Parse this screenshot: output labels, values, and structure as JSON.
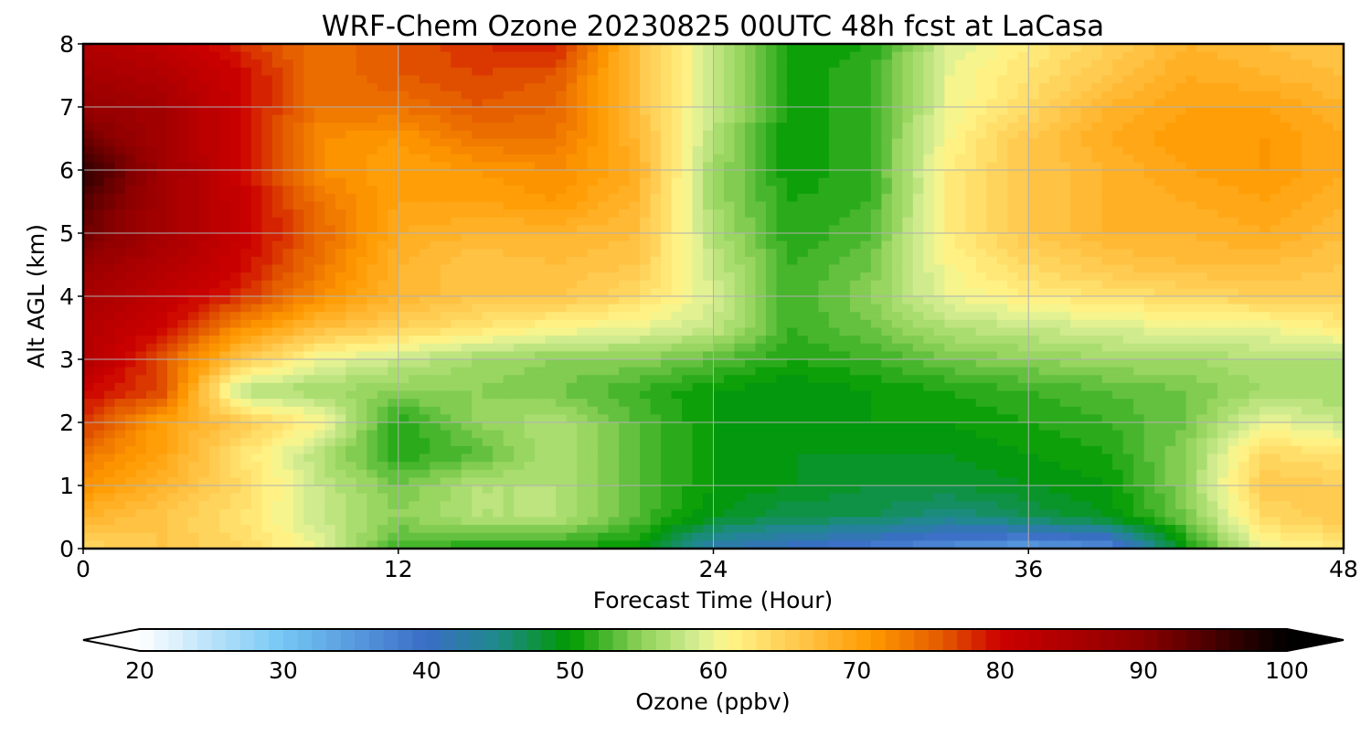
{
  "chart_data": {
    "type": "heatmap",
    "title": "WRF-Chem Ozone  20230825 00UTC 48h fcst at LaCasa",
    "xlabel": "Forecast Time (Hour)",
    "ylabel": "Alt AGL (km)",
    "xlim": [
      0,
      48
    ],
    "ylim": [
      0,
      8
    ],
    "x_ticks": [
      "0",
      "12",
      "24",
      "36",
      "48"
    ],
    "y_ticks": [
      "0",
      "1",
      "2",
      "3",
      "4",
      "5",
      "6",
      "7",
      "8"
    ],
    "grid": true,
    "colorbar": {
      "label": "Ozone  (ppbv)",
      "range": [
        20,
        100
      ],
      "ticks": [
        "20",
        "30",
        "40",
        "50",
        "60",
        "70",
        "80",
        "90",
        "100"
      ],
      "extend": "both",
      "placement": "bottom",
      "stops": [
        {
          "v": 20,
          "c": "#ffffff"
        },
        {
          "v": 30,
          "c": "#74c6f4"
        },
        {
          "v": 40,
          "c": "#3a6dc6"
        },
        {
          "v": 45,
          "c": "#1e8a8a"
        },
        {
          "v": 50,
          "c": "#009a00"
        },
        {
          "v": 55,
          "c": "#8fd25a"
        },
        {
          "v": 59,
          "c": "#d8ef95"
        },
        {
          "v": 61,
          "c": "#fff68a"
        },
        {
          "v": 66,
          "c": "#ffc64a"
        },
        {
          "v": 71,
          "c": "#ff9a00"
        },
        {
          "v": 76,
          "c": "#e35a00"
        },
        {
          "v": 80,
          "c": "#cc0000"
        },
        {
          "v": 90,
          "c": "#8a0000"
        },
        {
          "v": 100,
          "c": "#000000"
        }
      ]
    },
    "x": [
      0,
      3,
      6,
      9,
      12,
      15,
      18,
      21,
      24,
      27,
      30,
      33,
      36,
      39,
      42,
      45,
      48
    ],
    "y": [
      0,
      0.5,
      1,
      1.5,
      2,
      2.5,
      3,
      3.5,
      4,
      4.5,
      5,
      5.5,
      6,
      6.5,
      7,
      7.5,
      8
    ],
    "z": [
      [
        64,
        66,
        64,
        60,
        52,
        51,
        51,
        50,
        42,
        40,
        38,
        36,
        34,
        36,
        50,
        60,
        62
      ],
      [
        68,
        66,
        63,
        58,
        55,
        57,
        57,
        53,
        49,
        47,
        47,
        45,
        47,
        49,
        54,
        64,
        66
      ],
      [
        72,
        68,
        64,
        58,
        54,
        57,
        57,
        53,
        50,
        49,
        48,
        48,
        49,
        50,
        55,
        66,
        65
      ],
      [
        74,
        70,
        63,
        57,
        51,
        53,
        57,
        53,
        50,
        49,
        49,
        49,
        50,
        51,
        55,
        64,
        63
      ],
      [
        78,
        70,
        66,
        61,
        51,
        55,
        57,
        53,
        50,
        50,
        50,
        50,
        51,
        52,
        54,
        60,
        58
      ],
      [
        80,
        77,
        57,
        56,
        55,
        55,
        54,
        52,
        50,
        49,
        50,
        51,
        52,
        53,
        54,
        56,
        56
      ],
      [
        84,
        76,
        66,
        60,
        58,
        56,
        55,
        55,
        53,
        51,
        52,
        54,
        55,
        56,
        56,
        57,
        57
      ],
      [
        84,
        80,
        72,
        67,
        65,
        63,
        61,
        60,
        58,
        52,
        54,
        57,
        58,
        59,
        60,
        60,
        62
      ],
      [
        86,
        82,
        78,
        72,
        68,
        66,
        66,
        64,
        59,
        52,
        55,
        60,
        62,
        63,
        64,
        65,
        65
      ],
      [
        88,
        84,
        80,
        74,
        68,
        66,
        67,
        66,
        58,
        52,
        54,
        61,
        64,
        66,
        67,
        67,
        66
      ],
      [
        92,
        86,
        81,
        75,
        69,
        68,
        68,
        67,
        57,
        51,
        53,
        62,
        66,
        68,
        68,
        69,
        67
      ],
      [
        94,
        86,
        81,
        74,
        70,
        70,
        71,
        68,
        56,
        51,
        52,
        62,
        66,
        68,
        69,
        70,
        68
      ],
      [
        97,
        87,
        80,
        72,
        70,
        71,
        72,
        69,
        56,
        50,
        52,
        62,
        66,
        68,
        70,
        71,
        69
      ],
      [
        92,
        86,
        80,
        72,
        71,
        74,
        74,
        68,
        57,
        50,
        52,
        61,
        66,
        69,
        71,
        71,
        69
      ],
      [
        88,
        86,
        80,
        74,
        74,
        76,
        75,
        67,
        58,
        50,
        52,
        60,
        64,
        68,
        70,
        70,
        68
      ],
      [
        86,
        84,
        80,
        74,
        76,
        77,
        76,
        67,
        58,
        50,
        52,
        60,
        63,
        66,
        69,
        68,
        67
      ],
      [
        84,
        82,
        78,
        74,
        76,
        78,
        79,
        67,
        58,
        50,
        51,
        59,
        62,
        65,
        68,
        67,
        66
      ]
    ]
  }
}
